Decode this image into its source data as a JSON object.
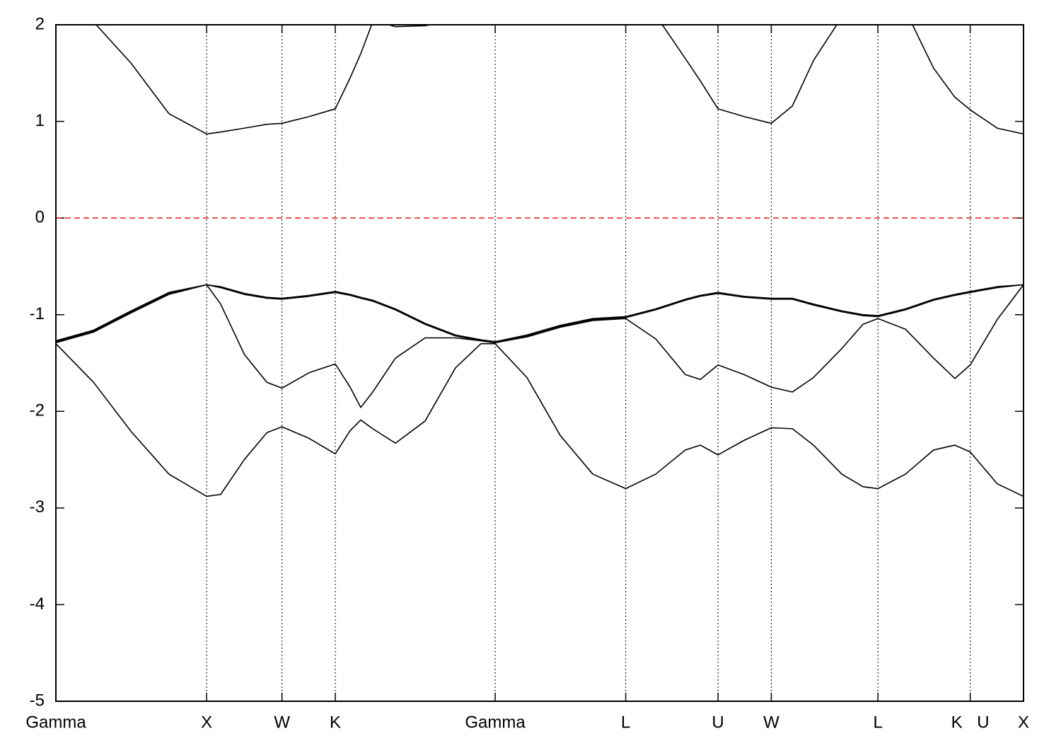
{
  "chart_data": {
    "type": "line",
    "x": [
      0,
      0.25,
      0.5,
      0.75,
      1,
      1.093,
      1.25,
      1.4,
      1.5,
      1.68,
      1.8536,
      1.952,
      2.0225,
      2.102,
      2.2525,
      2.4495,
      2.651,
      2.82,
      2.9142,
      3.125,
      3.346,
      3.562,
      3.7802,
      3.979,
      4.176,
      4.275,
      4.3926,
      4.566,
      4.7462,
      4.886,
      5.026,
      5.214,
      5.354,
      5.4533,
      5.636,
      5.823,
      5.964,
      6.0657,
      6.245,
      6.4193
    ],
    "series": [
      {
        "color": "#000000",
        "values": [
          -1.3,
          -1.7,
          -2.21,
          -2.65,
          -2.88,
          -2.86,
          -2.5,
          -2.22,
          -2.16,
          -2.28,
          -2.44,
          -2.2,
          -2.09,
          -2.18,
          -2.33,
          -2.1,
          -1.55,
          -1.3,
          -1.3,
          -1.65,
          -2.25,
          -2.65,
          -2.8,
          -2.65,
          -2.4,
          -2.35,
          -2.45,
          -2.3,
          -2.17,
          -2.18,
          -2.35,
          -2.65,
          -2.78,
          -2.8,
          -2.65,
          -2.4,
          -2.35,
          -2.42,
          -2.75,
          -2.88
        ]
      },
      {
        "color": "#000000",
        "values": [
          -1.29,
          -1.18,
          -0.98,
          -0.79,
          -0.69,
          -0.89,
          -1.41,
          -1.7,
          -1.76,
          -1.6,
          -1.51,
          -1.75,
          -1.96,
          -1.8,
          -1.45,
          -1.24,
          -1.24,
          -1.27,
          -1.29,
          -1.23,
          -1.13,
          -1.06,
          -1.04,
          -1.25,
          -1.62,
          -1.67,
          -1.52,
          -1.62,
          -1.75,
          -1.8,
          -1.65,
          -1.35,
          -1.1,
          -1.04,
          -1.15,
          -1.45,
          -1.66,
          -1.52,
          -1.05,
          -0.69
        ]
      },
      {
        "color": "#000000",
        "values": [
          -1.28,
          -1.17,
          -0.97,
          -0.78,
          -0.69,
          -0.72,
          -0.79,
          -0.83,
          -0.84,
          -0.81,
          -0.77,
          -0.8,
          -0.83,
          -0.86,
          -0.95,
          -1.1,
          -1.22,
          -1.27,
          -1.29,
          -1.22,
          -1.12,
          -1.05,
          -1.03,
          -0.95,
          -0.85,
          -0.81,
          -0.78,
          -0.82,
          -0.84,
          -0.84,
          -0.9,
          -0.97,
          -1.01,
          -1.02,
          -0.95,
          -0.85,
          -0.8,
          -0.77,
          -0.72,
          -0.69
        ]
      },
      {
        "color": "#000000",
        "values": [
          -1.27,
          -1.16,
          -0.96,
          -0.77,
          -0.69,
          -0.71,
          -0.78,
          -0.82,
          -0.83,
          -0.8,
          -0.76,
          -0.79,
          -0.82,
          -0.85,
          -0.94,
          -1.09,
          -1.21,
          -1.26,
          -1.28,
          -1.21,
          -1.11,
          -1.04,
          -1.02,
          -0.94,
          -0.84,
          -0.8,
          -0.77,
          -0.81,
          -0.83,
          -0.83,
          -0.89,
          -0.96,
          -1.0,
          -1.01,
          -0.94,
          -0.84,
          -0.79,
          -0.76,
          -0.71,
          -0.69
        ]
      },
      {
        "color": "#000000",
        "values": [
          null,
          2.03,
          1.6,
          1.08,
          0.87,
          0.89,
          0.93,
          0.97,
          0.98,
          1.05,
          1.13,
          1.45,
          1.7,
          2.03,
          null,
          null,
          null,
          null,
          null,
          null,
          null,
          null,
          null,
          2.1,
          1.65,
          1.42,
          1.13,
          1.05,
          0.98,
          1.16,
          1.63,
          2.08,
          null,
          null,
          2.15,
          1.55,
          1.25,
          1.12,
          0.93,
          0.87
        ]
      },
      {
        "color": "#000000",
        "values": [
          null,
          null,
          null,
          null,
          null,
          null,
          null,
          null,
          null,
          null,
          null,
          null,
          null,
          2.05,
          1.98,
          1.99,
          2.05,
          null,
          null,
          null,
          null,
          null,
          null,
          null,
          null,
          null,
          null,
          null,
          null,
          null,
          null,
          null,
          null,
          null,
          null,
          null,
          null,
          null,
          null,
          null
        ]
      }
    ],
    "xlim": [
      0,
      6.4193
    ],
    "xticks": [
      {
        "value": 0,
        "label": "Gamma"
      },
      {
        "value": 1,
        "label": "X"
      },
      {
        "value": 1.5,
        "label": "W"
      },
      {
        "value": 1.8536,
        "label": "K"
      },
      {
        "value": 2.9142,
        "label": "Gamma"
      },
      {
        "value": 3.7802,
        "label": "L"
      },
      {
        "value": 4.3926,
        "label": "U"
      },
      {
        "value": 4.7462,
        "label": "W"
      },
      {
        "value": 5.4533,
        "label": "L"
      },
      {
        "value": 6.0657,
        "label": "K U"
      },
      {
        "value": 6.4193,
        "label": "X"
      }
    ],
    "ylim": [
      -5,
      2
    ],
    "yticks": [
      -5,
      -4,
      -3,
      -2,
      -1,
      0,
      1,
      2
    ],
    "grid": true,
    "hline": {
      "value": 0,
      "color": "#e41a1c"
    }
  }
}
